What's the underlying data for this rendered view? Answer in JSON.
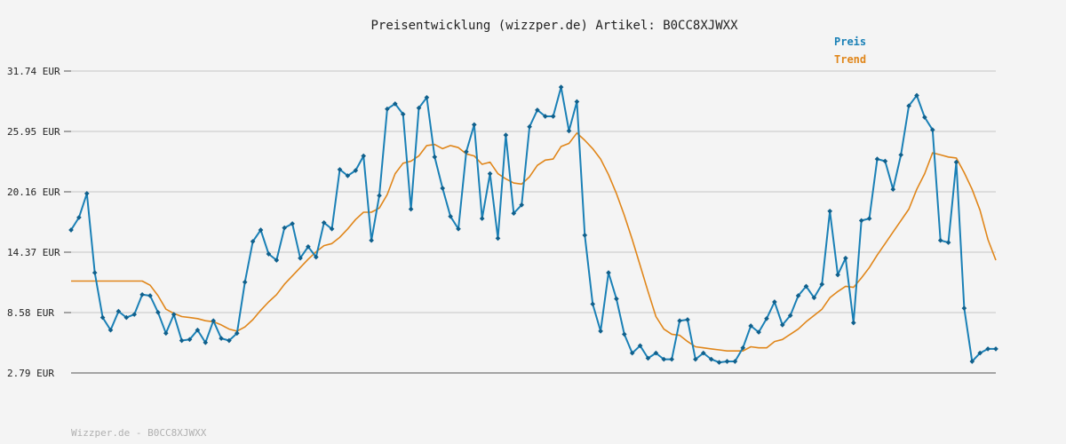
{
  "chart_data": {
    "type": "line",
    "title": "Preisentwicklung (wizzper.de) Artikel: B0CC8XJWXX",
    "footer": "Wizzper.de - B0CC8XJWXX",
    "y_ticks": [
      "31.74 EUR",
      "25.95 EUR",
      "20.16 EUR",
      "14.37 EUR",
      "8.58 EUR",
      "2.79 EUR"
    ],
    "y_tick_values": [
      31.74,
      25.95,
      20.16,
      14.37,
      8.58,
      2.79
    ],
    "ylim": [
      2.79,
      31.74
    ],
    "grid": true,
    "legend_position": "top-right",
    "colors": {
      "preis": "#1a80b6",
      "trend": "#e0861a",
      "grid": "#dddddd",
      "axis": "#555555"
    },
    "series": [
      {
        "name": "Preis",
        "values": [
          16.5,
          17.7,
          20.0,
          12.4,
          8.1,
          6.9,
          8.7,
          8.1,
          8.4,
          10.3,
          10.2,
          8.6,
          6.6,
          8.4,
          5.9,
          6.0,
          6.9,
          5.7,
          7.8,
          6.1,
          5.9,
          6.6,
          11.5,
          15.4,
          16.5,
          14.2,
          13.6,
          16.7,
          17.1,
          13.8,
          14.9,
          13.9,
          17.2,
          16.6,
          22.3,
          21.7,
          22.2,
          23.6,
          15.5,
          19.8,
          28.1,
          28.6,
          27.6,
          18.5,
          28.2,
          29.2,
          23.5,
          20.5,
          17.8,
          16.6,
          24.0,
          26.6,
          17.6,
          21.9,
          15.7,
          25.6,
          18.1,
          18.9,
          26.4,
          28.0,
          27.4,
          27.4,
          30.2,
          26.0,
          28.8,
          16.0,
          9.4,
          6.8,
          12.4,
          9.9,
          6.5,
          4.7,
          5.4,
          4.2,
          4.7,
          4.1,
          4.1,
          7.8,
          7.9,
          4.1,
          4.7,
          4.1,
          3.8,
          3.9,
          3.9,
          5.2,
          7.3,
          6.7,
          8.0,
          9.6,
          7.4,
          8.3,
          10.2,
          11.1,
          10.0,
          11.3,
          18.3,
          12.2,
          13.8,
          7.6,
          17.4,
          17.6,
          23.3,
          23.1,
          20.4,
          23.7,
          28.4,
          29.4,
          27.3,
          26.1,
          15.5,
          15.3,
          23.0,
          9.0,
          3.9,
          4.7,
          5.1,
          5.1
        ]
      },
      {
        "name": "Trend",
        "values": [
          11.6,
          11.6,
          11.6,
          11.6,
          11.6,
          11.6,
          11.6,
          11.6,
          11.6,
          11.6,
          11.2,
          10.2,
          8.9,
          8.5,
          8.2,
          8.1,
          8.0,
          7.8,
          7.7,
          7.4,
          7.0,
          6.8,
          7.2,
          7.9,
          8.8,
          9.6,
          10.3,
          11.3,
          12.1,
          12.9,
          13.7,
          14.4,
          15.0,
          15.2,
          15.8,
          16.6,
          17.5,
          18.2,
          18.2,
          18.6,
          19.9,
          21.9,
          22.9,
          23.1,
          23.6,
          24.6,
          24.7,
          24.3,
          24.6,
          24.4,
          23.8,
          23.6,
          22.8,
          23.0,
          21.9,
          21.4,
          21.0,
          20.9,
          21.6,
          22.7,
          23.2,
          23.3,
          24.5,
          24.8,
          25.8,
          25.1,
          24.3,
          23.3,
          21.8,
          20.0,
          17.9,
          15.6,
          13.1,
          10.6,
          8.2,
          7.0,
          6.5,
          6.4,
          5.8,
          5.3,
          5.2,
          5.1,
          5.0,
          4.9,
          4.9,
          4.9,
          5.3,
          5.2,
          5.2,
          5.8,
          6.0,
          6.5,
          7.0,
          7.7,
          8.3,
          8.9,
          10.0,
          10.6,
          11.1,
          11.0,
          11.9,
          12.9,
          14.1,
          15.2,
          16.3,
          17.4,
          18.5,
          20.4,
          21.9,
          23.9,
          23.7,
          23.5,
          23.4,
          22.0,
          20.4,
          18.4,
          15.6,
          13.6
        ]
      }
    ]
  }
}
